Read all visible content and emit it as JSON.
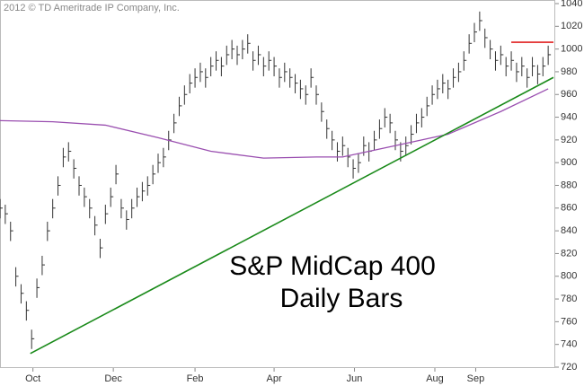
{
  "chart_data": {
    "type": "ohlc",
    "copyright": "2012 © TD Ameritrade IP Company, Inc.",
    "annotation": [
      "S&P MidCap 400",
      "Daily Bars"
    ],
    "x": [
      0,
      4,
      8,
      12,
      16,
      20,
      24,
      28,
      32,
      36,
      40,
      44,
      48,
      52,
      56,
      60,
      64,
      68,
      72,
      76,
      80,
      84,
      88,
      92,
      96,
      100,
      104,
      108,
      112,
      116,
      120,
      124,
      128,
      132,
      136,
      140,
      144,
      148,
      152,
      156,
      160,
      164,
      168,
      172,
      176,
      180,
      184,
      188,
      192,
      196,
      200,
      204,
      208,
      212,
      216,
      220,
      224,
      228,
      232,
      236,
      240,
      244,
      248,
      252,
      256,
      260,
      264,
      268,
      272,
      276,
      280,
      284,
      288,
      292,
      296,
      300,
      304,
      308,
      312,
      316,
      320,
      324,
      328,
      332,
      336,
      340,
      344,
      348,
      352,
      356,
      360,
      364,
      368,
      372,
      376,
      380,
      384,
      388,
      392,
      396,
      400,
      404,
      408,
      412,
      416
    ],
    "high": [
      868,
      863,
      848,
      808,
      793,
      778,
      753,
      798,
      818,
      848,
      868,
      888,
      913,
      918,
      903,
      888,
      878,
      868,
      853,
      833,
      863,
      878,
      898,
      868,
      858,
      868,
      878,
      883,
      888,
      898,
      908,
      913,
      928,
      943,
      958,
      968,
      978,
      983,
      988,
      983,
      993,
      998,
      993,
      1003,
      1008,
      1003,
      1008,
      1013,
      998,
      1003,
      993,
      998,
      993,
      983,
      988,
      983,
      978,
      973,
      968,
      983,
      968,
      953,
      938,
      928,
      918,
      923,
      913,
      903,
      908,
      923,
      918,
      928,
      938,
      948,
      943,
      928,
      918,
      923,
      933,
      943,
      948,
      958,
      968,
      973,
      978,
      973,
      983,
      988,
      998,
      1013,
      1023,
      1033,
      1018,
      1008,
      998,
      1003,
      993,
      998,
      988,
      993,
      983,
      993,
      986,
      993,
      1003
    ],
    "low": [
      851,
      846,
      831,
      791,
      776,
      761,
      736,
      781,
      801,
      831,
      851,
      871,
      896,
      901,
      886,
      871,
      861,
      851,
      836,
      816,
      846,
      861,
      881,
      851,
      841,
      851,
      861,
      866,
      871,
      881,
      891,
      896,
      911,
      926,
      941,
      951,
      961,
      966,
      971,
      966,
      976,
      981,
      976,
      986,
      991,
      986,
      991,
      996,
      981,
      986,
      976,
      981,
      976,
      966,
      971,
      966,
      961,
      956,
      951,
      966,
      951,
      936,
      921,
      911,
      901,
      906,
      896,
      886,
      891,
      906,
      901,
      911,
      921,
      931,
      926,
      911,
      901,
      906,
      916,
      926,
      931,
      941,
      951,
      956,
      961,
      956,
      966,
      971,
      981,
      996,
      1006,
      1016,
      1001,
      991,
      981,
      986,
      976,
      981,
      971,
      976,
      966,
      976,
      969,
      976,
      986
    ],
    "close": [
      860,
      855,
      840,
      800,
      785,
      770,
      745,
      790,
      810,
      840,
      860,
      880,
      905,
      910,
      895,
      880,
      870,
      860,
      845,
      825,
      855,
      870,
      890,
      860,
      850,
      860,
      870,
      875,
      880,
      890,
      900,
      905,
      920,
      935,
      950,
      960,
      970,
      975,
      980,
      975,
      985,
      990,
      985,
      995,
      1000,
      995,
      1000,
      1005,
      990,
      995,
      985,
      990,
      985,
      975,
      980,
      975,
      970,
      965,
      960,
      975,
      960,
      945,
      930,
      920,
      910,
      915,
      905,
      895,
      900,
      915,
      910,
      920,
      930,
      940,
      935,
      920,
      910,
      915,
      925,
      935,
      940,
      950,
      960,
      965,
      970,
      965,
      975,
      980,
      990,
      1005,
      1015,
      1025,
      1010,
      1000,
      990,
      995,
      985,
      990,
      980,
      985,
      975,
      985,
      978,
      985,
      995
    ],
    "bar_color": "#333333",
    "lines": [
      {
        "color": "#9a4fb0",
        "x": [
          0,
          40,
          80,
          120,
          160,
          200,
          240,
          260,
          300,
          340,
          380,
          416
        ],
        "values": [
          937,
          936,
          933,
          922,
          910,
          904,
          905,
          905,
          915,
          925,
          945,
          965
        ]
      },
      {
        "color": "#1a8a1a",
        "x": [
          23,
          420
        ],
        "values": [
          732,
          975
        ]
      },
      {
        "color": "#e02020",
        "x": [
          388,
          420
        ],
        "values": [
          1006,
          1006
        ]
      }
    ],
    "xlim": [
      0,
      420
    ],
    "xticks": [
      {
        "value": 25,
        "label": "Oct"
      },
      {
        "value": 86,
        "label": "Dec"
      },
      {
        "value": 148,
        "label": "Feb"
      },
      {
        "value": 208,
        "label": "Apr"
      },
      {
        "value": 269,
        "label": "Jun"
      },
      {
        "value": 330,
        "label": "Aug"
      },
      {
        "value": 361,
        "label": "Sep"
      }
    ],
    "ylim": [
      720,
      1040
    ],
    "yticks": [
      720,
      740,
      760,
      780,
      800,
      820,
      840,
      860,
      880,
      900,
      920,
      940,
      960,
      980,
      1000,
      1020,
      1040
    ]
  }
}
